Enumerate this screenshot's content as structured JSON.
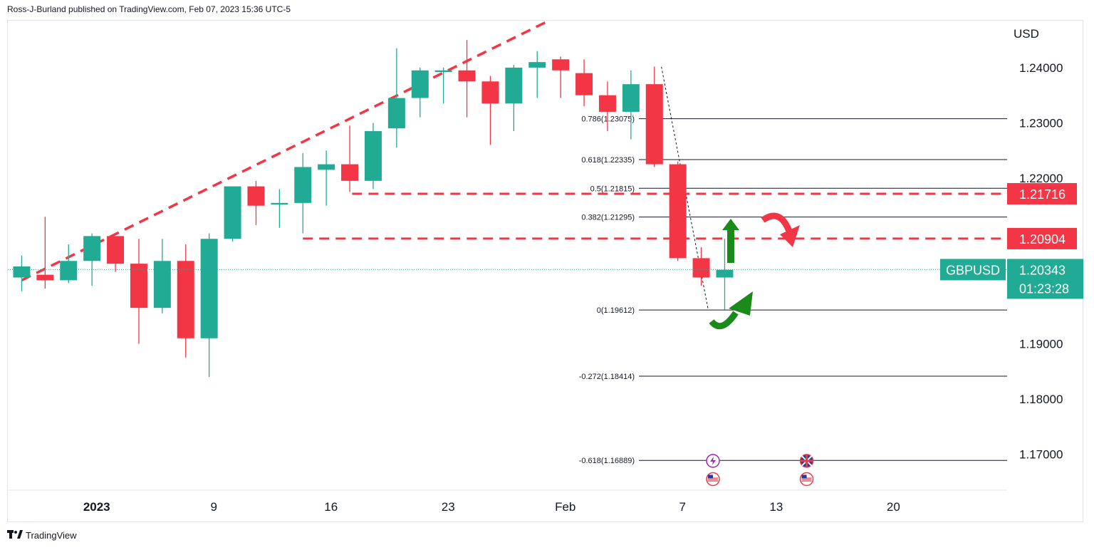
{
  "header": {
    "publisher_line": "Ross-J-Burland published on TradingView.com, Feb 07, 2023 15:36 UTC-5"
  },
  "footer": {
    "logo_icon": "tradingview-logo-icon",
    "brand": "TradingView"
  },
  "colors": {
    "up": "#22ab94",
    "down": "#f23645",
    "trendline": "#f23645",
    "fib": "#131722",
    "arrow_up": "#1a8a1a",
    "arrow_down": "#f23645"
  },
  "chart_data": {
    "type": "candlestick",
    "symbol": "GBPUSD",
    "currency_label": "USD",
    "last_price": "1.20343",
    "countdown": "01:23:28",
    "ylim": [
      1.1635,
      1.2485
    ],
    "y_ticks": [
      "1.24000",
      "1.23000",
      "1.22000",
      "1.19000",
      "1.18000",
      "1.17000"
    ],
    "x_ticks": [
      {
        "label": "2023",
        "bar": 3.2
      },
      {
        "label": "9",
        "bar": 8.2
      },
      {
        "label": "16",
        "bar": 13.2
      },
      {
        "label": "23",
        "bar": 18.2
      },
      {
        "label": "Feb",
        "bar": 23.2
      },
      {
        "label": "7",
        "bar": 28.2
      },
      {
        "label": "13",
        "bar": 32.2
      },
      {
        "label": "20",
        "bar": 37.2
      }
    ],
    "candles": [
      {
        "o": 1.202,
        "h": 1.206,
        "l": 1.1995,
        "c": 1.204
      },
      {
        "o": 1.2025,
        "h": 1.213,
        "l": 1.2,
        "c": 1.2015
      },
      {
        "o": 1.2015,
        "h": 1.208,
        "l": 1.201,
        "c": 1.205
      },
      {
        "o": 1.205,
        "h": 1.21,
        "l": 1.2005,
        "c": 1.2095
      },
      {
        "o": 1.2095,
        "h": 1.2095,
        "l": 1.203,
        "c": 1.2045
      },
      {
        "o": 1.2045,
        "h": 1.209,
        "l": 1.19,
        "c": 1.1965
      },
      {
        "o": 1.1965,
        "h": 1.209,
        "l": 1.1955,
        "c": 1.205
      },
      {
        "o": 1.205,
        "h": 1.208,
        "l": 1.1875,
        "c": 1.191
      },
      {
        "o": 1.191,
        "h": 1.21,
        "l": 1.184,
        "c": 1.209
      },
      {
        "o": 1.209,
        "h": 1.218,
        "l": 1.2085,
        "c": 1.2185
      },
      {
        "o": 1.2185,
        "h": 1.2195,
        "l": 1.2115,
        "c": 1.215
      },
      {
        "o": 1.2152,
        "h": 1.218,
        "l": 1.211,
        "c": 1.2155
      },
      {
        "o": 1.2155,
        "h": 1.2245,
        "l": 1.21,
        "c": 1.222
      },
      {
        "o": 1.2215,
        "h": 1.225,
        "l": 1.215,
        "c": 1.2225
      },
      {
        "o": 1.2225,
        "h": 1.2295,
        "l": 1.2175,
        "c": 1.2195
      },
      {
        "o": 1.2195,
        "h": 1.23,
        "l": 1.218,
        "c": 1.2285
      },
      {
        "o": 1.229,
        "h": 1.2435,
        "l": 1.2255,
        "c": 1.2345
      },
      {
        "o": 1.2345,
        "h": 1.24,
        "l": 1.231,
        "c": 1.2395
      },
      {
        "o": 1.2392,
        "h": 1.24,
        "l": 1.2335,
        "c": 1.2395
      },
      {
        "o": 1.2395,
        "h": 1.245,
        "l": 1.231,
        "c": 1.2375
      },
      {
        "o": 1.2375,
        "h": 1.2385,
        "l": 1.226,
        "c": 1.2335
      },
      {
        "o": 1.2335,
        "h": 1.2405,
        "l": 1.2285,
        "c": 1.24
      },
      {
        "o": 1.24,
        "h": 1.243,
        "l": 1.2345,
        "c": 1.241
      },
      {
        "o": 1.2415,
        "h": 1.242,
        "l": 1.2345,
        "c": 1.2395
      },
      {
        "o": 1.239,
        "h": 1.2415,
        "l": 1.233,
        "c": 1.235
      },
      {
        "o": 1.235,
        "h": 1.2375,
        "l": 1.2285,
        "c": 1.232
      },
      {
        "o": 1.232,
        "h": 1.2395,
        "l": 1.227,
        "c": 1.237
      },
      {
        "o": 1.237,
        "h": 1.2402,
        "l": 1.222,
        "c": 1.2225
      },
      {
        "o": 1.2225,
        "h": 1.223,
        "l": 1.205,
        "c": 1.2055
      },
      {
        "o": 1.2055,
        "h": 1.2075,
        "l": 1.2005,
        "c": 1.202
      },
      {
        "o": 1.202,
        "h": 1.209,
        "l": 1.1962,
        "c": 1.2034
      }
    ],
    "fibonacci": [
      {
        "label": "0.786(1.23075)",
        "value": 1.23075
      },
      {
        "label": "0.618(1.22335)",
        "value": 1.22335
      },
      {
        "label": "0.5(1.21815)",
        "value": 1.21815
      },
      {
        "label": "0.382(1.21295)",
        "value": 1.21295
      },
      {
        "label": "0(1.19612)",
        "value": 1.19612
      },
      {
        "label": "-0.272(1.18414)",
        "value": 1.18414
      },
      {
        "label": "-0.618(1.16889)",
        "value": 1.16889
      }
    ],
    "fib_anchor": {
      "from": {
        "bar": 27.3,
        "price": 1.24015
      },
      "to": {
        "bar": 29.3,
        "price": 1.19612
      }
    },
    "horizontal_levels": [
      {
        "label": "1.21716",
        "value": 1.21716,
        "from_bar": 14.1
      },
      {
        "label": "1.20904",
        "value": 1.20904,
        "from_bar": 12.0
      }
    ],
    "trendline": {
      "from": {
        "bar": 0.0,
        "price": 1.2015
      },
      "to": {
        "bar": 22.5,
        "price": 1.2485
      }
    },
    "event_icons": [
      {
        "icon": "lightning-icon",
        "bar": 29.5,
        "price": 1.1688
      },
      {
        "icon": "uk-flag-icon",
        "bar": 33.5,
        "price": 1.1688
      },
      {
        "icon": "us-flag-icon",
        "bar": 29.5,
        "price": 1.1655
      },
      {
        "icon": "us-flag-icon",
        "bar": 33.5,
        "price": 1.1655
      }
    ]
  }
}
